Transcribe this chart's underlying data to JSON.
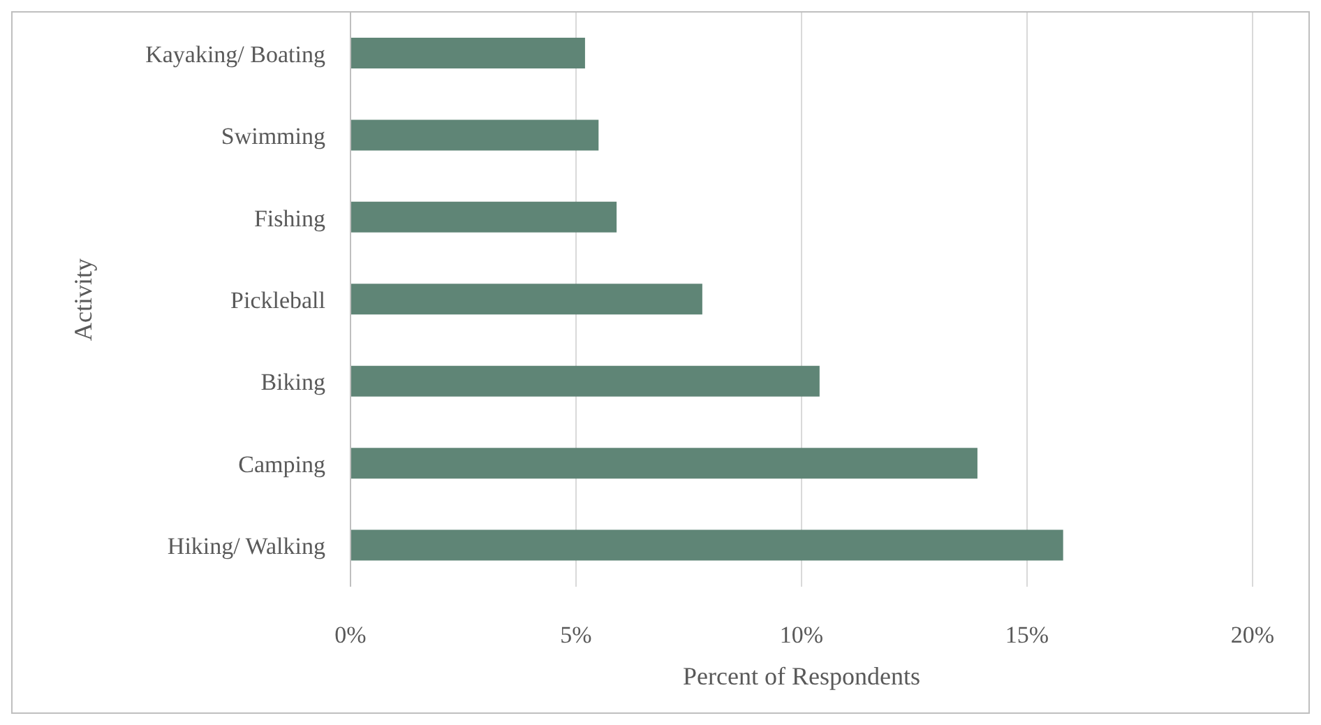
{
  "chart_data": {
    "type": "bar",
    "orientation": "horizontal",
    "xlabel": "Percent  of Respondents",
    "ylabel": "Activity",
    "categories": [
      "Kayaking/ Boating",
      "Swimming",
      "Fishing",
      "Pickleball",
      "Biking",
      "Camping",
      "Hiking/ Walking"
    ],
    "values": [
      5.2,
      5.5,
      5.9,
      7.8,
      10.4,
      13.9,
      15.8
    ],
    "color": "#5f8576",
    "xlim": [
      0,
      20
    ],
    "xticks": [
      {
        "value": 0,
        "label": "0%"
      },
      {
        "value": 5,
        "label": "5%"
      },
      {
        "value": 10,
        "label": "10%"
      },
      {
        "value": 15,
        "label": "15%"
      },
      {
        "value": 20,
        "label": "20%"
      }
    ],
    "grid": "x",
    "legend": false
  }
}
